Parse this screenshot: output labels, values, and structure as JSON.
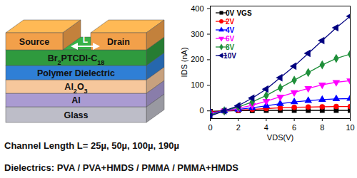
{
  "diagram": {
    "electrodes": [
      {
        "label": "Source",
        "color": "#f2a04a"
      },
      {
        "label": "Drain",
        "color": "#f2a04a"
      }
    ],
    "channel_label": "L",
    "layers": [
      {
        "label": "Br2PTCDI-C18",
        "color": "#2f9a3e"
      },
      {
        "label": "Polymer Dielectric",
        "color": "#2f7fd6"
      },
      {
        "label": "Al2O3",
        "color": "#f6c79c"
      },
      {
        "label": "Al",
        "color": "#aa9bd2"
      },
      {
        "label": "Glass",
        "color": "#bdbdc8"
      }
    ]
  },
  "captions": [
    "Channel Length L= 25µ, 50µ, 100µ, 190µ",
    "Dielectrics: PVA / PVA+HMDS / PMMA / PMMA+HMDS"
  ],
  "chart_data": {
    "type": "line",
    "x_label": "VDS(V)",
    "y_label": "IDS (nA)",
    "x": [
      0,
      1,
      2,
      3,
      4,
      5,
      6,
      7,
      8,
      9,
      10
    ],
    "xlim": [
      0,
      10
    ],
    "xticks": [
      0,
      2,
      4,
      6,
      8,
      10
    ],
    "ylim": [
      -30,
      410
    ],
    "yticks": [
      0,
      100,
      200,
      300,
      400
    ],
    "grid": false,
    "legend": "top-left",
    "legend_title": "VGS",
    "series": [
      {
        "name": "0V",
        "color": "#000000",
        "marker": "square",
        "values": [
          -2,
          0,
          1,
          1,
          2,
          2,
          2,
          2,
          2,
          2,
          2
        ]
      },
      {
        "name": "2V",
        "color": "#ff0000",
        "marker": "circle",
        "values": [
          -5,
          0,
          3,
          6,
          9,
          12,
          14,
          15,
          16,
          17,
          17
        ]
      },
      {
        "name": "4V",
        "color": "#0000ff",
        "marker": "triangle",
        "values": [
          -8,
          0,
          6,
          12,
          20,
          28,
          35,
          40,
          44,
          47,
          48
        ]
      },
      {
        "name": "6V",
        "color": "#ff00ff",
        "marker": "triangle-down",
        "values": [
          -12,
          0,
          10,
          22,
          38,
          55,
          72,
          88,
          102,
          112,
          118
        ]
      },
      {
        "name": "8V",
        "color": "#1f8f3a",
        "marker": "diamond",
        "values": [
          -15,
          0,
          15,
          35,
          60,
          90,
          120,
          150,
          180,
          205,
          222
        ]
      },
      {
        "name": "10V",
        "color": "#000080",
        "marker": "triangle-left",
        "values": [
          -20,
          0,
          20,
          50,
          85,
          130,
          175,
          225,
          275,
          325,
          370
        ]
      }
    ]
  }
}
